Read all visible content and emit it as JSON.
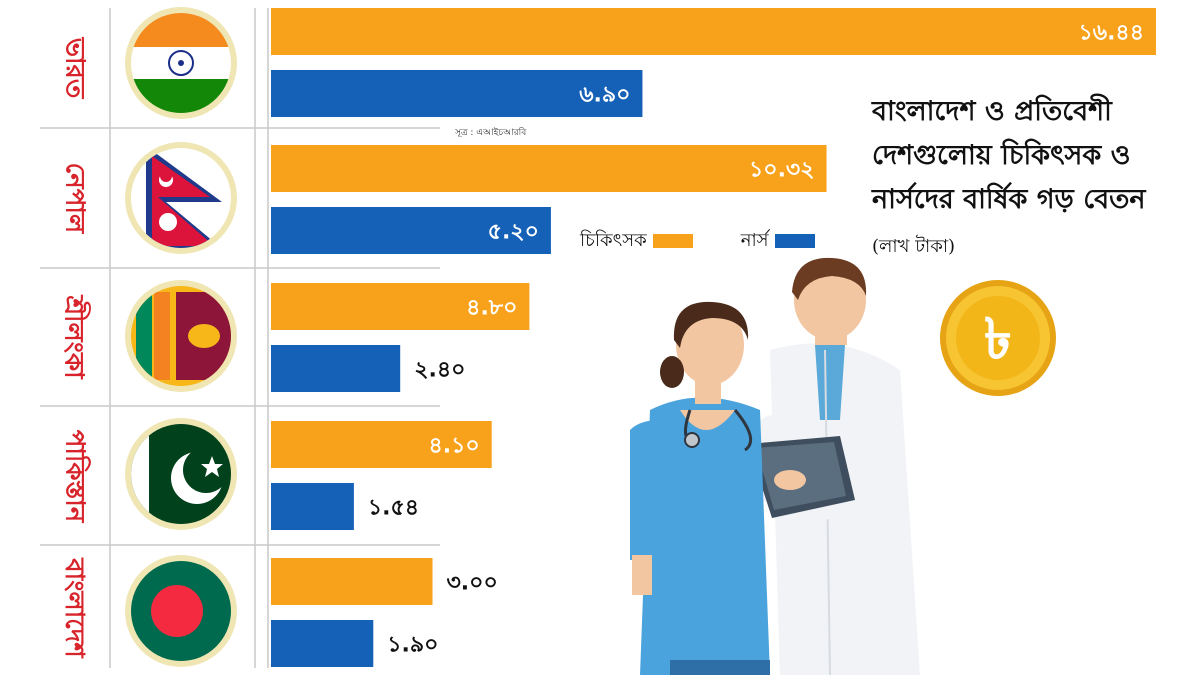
{
  "title_main": "বাংলাদেশ ও প্রতিবেশী দেশগুলোয় চিকিৎসক ও নার্সদের বার্ষিক গড় বেতন",
  "title_unit": "(লাখ টাকা)",
  "source": "সূত্র : এআইচআরবি",
  "colors": {
    "doctor": "#F8A11A",
    "nurse": "#1561B8",
    "label": "#d8232a"
  },
  "chart_data": {
    "type": "bar",
    "orientation": "horizontal",
    "categories": [
      "ভারত",
      "নেপাল",
      "শ্রীলংকা",
      "পাকিস্তান",
      "বাংলাদেশ"
    ],
    "series": [
      {
        "name": "চিকিৎসক",
        "values": [
          16.44,
          10.32,
          4.8,
          4.1,
          3.0
        ],
        "labels": [
          "১৬.৪৪",
          "১০.৩২",
          "৪.৮০",
          "৪.১০",
          "৩.০০"
        ]
      },
      {
        "name": "নার্স",
        "values": [
          6.9,
          5.2,
          2.4,
          1.54,
          1.9
        ],
        "labels": [
          "৬.৯০",
          "৫.২০",
          "২.৪০",
          "১.৫৪",
          "১.৯০"
        ]
      }
    ],
    "xlim": [
      0,
      16.44
    ],
    "grid": false,
    "legend": "middle"
  },
  "flags": [
    "india-flag",
    "nepal-flag",
    "sri-lanka-flag",
    "pakistan-flag",
    "bangladesh-flag"
  ],
  "icons": {
    "coin": "taka-coin-icon",
    "people": "medical-staff-illustration"
  }
}
